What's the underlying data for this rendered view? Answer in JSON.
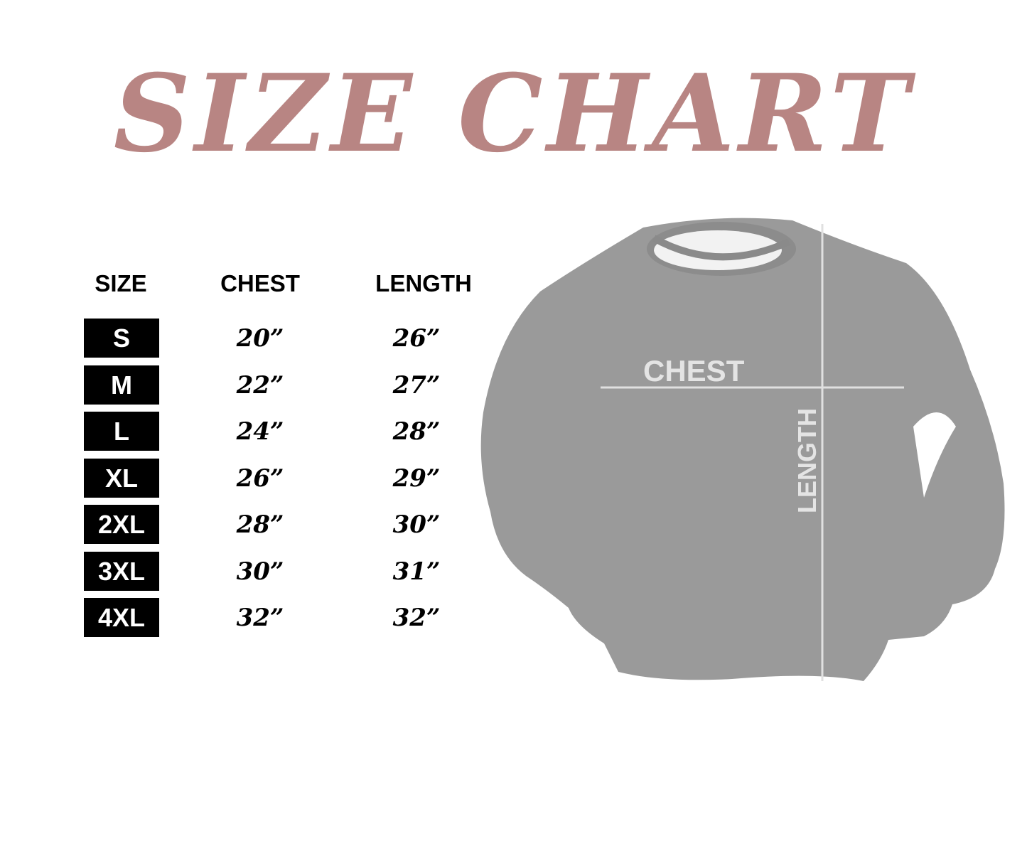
{
  "title": "SIZE CHART",
  "colors": {
    "title": "#b88583",
    "size_box": "#000000",
    "sweatshirt": "#9a9a9a",
    "measure_lines": "#e0e0e0"
  },
  "table": {
    "headers": [
      "SIZE",
      "CHEST",
      "LENGTH"
    ],
    "rows": [
      {
        "size": "S",
        "chest": "20”",
        "length": "26”"
      },
      {
        "size": "M",
        "chest": "22”",
        "length": "27”"
      },
      {
        "size": "L",
        "chest": "24”",
        "length": "28”"
      },
      {
        "size": "XL",
        "chest": "26”",
        "length": "29”"
      },
      {
        "size": "2XL",
        "chest": "28”",
        "length": "30”"
      },
      {
        "size": "3XL",
        "chest": "30”",
        "length": "31”"
      },
      {
        "size": "4XL",
        "chest": "32”",
        "length": "32”"
      }
    ]
  },
  "diagram": {
    "chest_label": "CHEST",
    "length_label": "LENGTH"
  }
}
